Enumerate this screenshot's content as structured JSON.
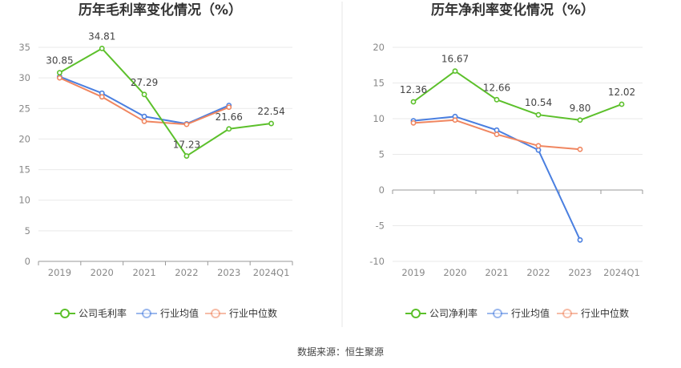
{
  "source_text": "数据来源：恒生聚源",
  "chart_data": [
    {
      "type": "line",
      "title": "历年毛利率变化情况（%）",
      "categories": [
        "2019",
        "2020",
        "2021",
        "2022",
        "2023",
        "2024Q1"
      ],
      "ylim": [
        0,
        35
      ],
      "yticks": [
        "0",
        "5",
        "10",
        "15",
        "20",
        "25",
        "30",
        "35"
      ],
      "ytick_values": [
        0,
        5,
        10,
        15,
        20,
        25,
        30,
        35
      ],
      "grid": true,
      "legend_position": "bottom",
      "series": [
        {
          "name": "公司毛利率",
          "color": "#5cc02b",
          "values": [
            30.85,
            34.81,
            27.29,
            17.23,
            21.66,
            22.54
          ],
          "labels": [
            "30.85",
            "34.81",
            "27.29",
            "17.23",
            "21.66",
            "22.54"
          ]
        },
        {
          "name": "行业均值",
          "color": "#4a7fe0",
          "values": [
            30.2,
            27.5,
            23.7,
            22.5,
            25.5,
            null
          ]
        },
        {
          "name": "行业中位数",
          "color": "#f08660",
          "values": [
            30.0,
            26.9,
            22.9,
            22.4,
            25.2,
            null
          ]
        }
      ]
    },
    {
      "type": "line",
      "title": "历年净利率变化情况（%）",
      "categories": [
        "2019",
        "2020",
        "2021",
        "2022",
        "2023",
        "2024Q1"
      ],
      "ylim": [
        -10,
        20
      ],
      "yticks": [
        "-10",
        "-5",
        "0",
        "5",
        "10",
        "15",
        "20"
      ],
      "ytick_values": [
        -10,
        -5,
        0,
        5,
        10,
        15,
        20
      ],
      "grid": true,
      "legend_position": "bottom",
      "series": [
        {
          "name": "公司净利率",
          "color": "#5cc02b",
          "values": [
            12.36,
            16.67,
            12.66,
            10.54,
            9.8,
            12.02
          ],
          "labels": [
            "12.36",
            "16.67",
            "12.66",
            "10.54",
            "9.80",
            "12.02"
          ]
        },
        {
          "name": "行业均值",
          "color": "#4a7fe0",
          "values": [
            9.7,
            10.3,
            8.4,
            5.6,
            -7.0,
            null
          ]
        },
        {
          "name": "行业中位数",
          "color": "#f08660",
          "values": [
            9.4,
            9.8,
            7.8,
            6.2,
            5.7,
            null
          ]
        }
      ]
    }
  ]
}
